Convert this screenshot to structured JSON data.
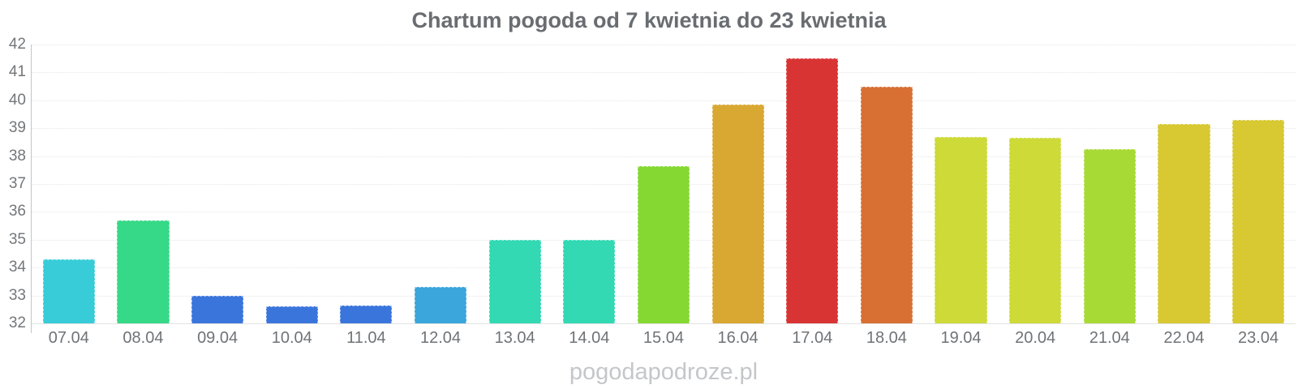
{
  "watermark": "pogodapodroze.pl",
  "chart_data": {
    "type": "bar",
    "title": "Chartum pogoda od 7 kwietnia do 23 kwietnia",
    "categories": [
      "07.04",
      "08.04",
      "09.04",
      "10.04",
      "11.04",
      "12.04",
      "13.04",
      "14.04",
      "15.04",
      "16.04",
      "17.04",
      "18.04",
      "19.04",
      "20.04",
      "21.04",
      "22.04",
      "23.04"
    ],
    "values": [
      34.3,
      35.7,
      33.0,
      32.6,
      32.65,
      33.3,
      35.0,
      35.0,
      37.65,
      39.85,
      41.5,
      40.5,
      38.7,
      38.65,
      38.25,
      39.15,
      39.3
    ],
    "colors": [
      "#38ccd8",
      "#36d987",
      "#3a75dc",
      "#3a75dc",
      "#3a75dc",
      "#3aa6dc",
      "#32d9b3",
      "#32d9b3",
      "#85d832",
      "#d9a832",
      "#d93434",
      "#d87033",
      "#cdda38",
      "#cdda38",
      "#a8da36",
      "#d8c832",
      "#d8c832"
    ],
    "xlabel": "",
    "ylabel": "",
    "ylim": [
      32,
      42
    ],
    "y_ticks": [
      42,
      41,
      40,
      39,
      38,
      37,
      36,
      35,
      34,
      33,
      32
    ],
    "grid": "horizontal-dotted",
    "legend": "none"
  }
}
